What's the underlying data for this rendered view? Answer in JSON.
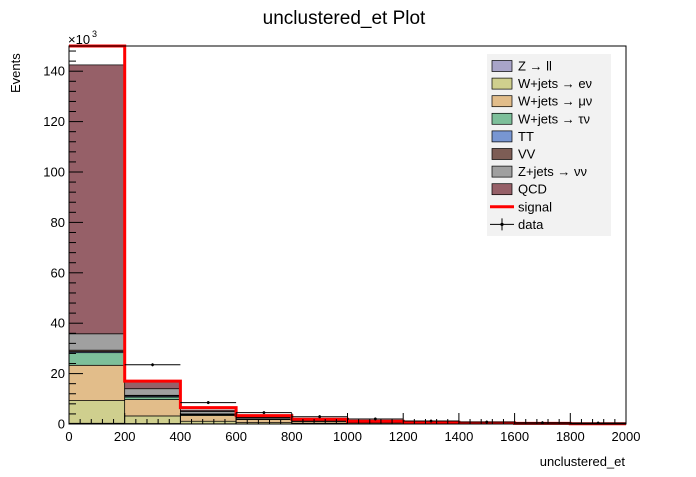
{
  "chart_data": {
    "type": "bar",
    "stacked": true,
    "title": "unclustered_et Plot",
    "xlabel": "unclustered_et",
    "ylabel": "Events",
    "y_multiplier": "×10",
    "y_multiplier_exp": "3",
    "xlim": [
      0,
      2000
    ],
    "ylim": [
      0,
      150
    ],
    "x_ticks": [
      0,
      200,
      400,
      600,
      800,
      1000,
      1200,
      1400,
      1600,
      1800,
      2000
    ],
    "y_ticks": [
      0,
      20,
      40,
      60,
      80,
      100,
      120,
      140
    ],
    "bin_edges": [
      0,
      200,
      400,
      600,
      800,
      1000,
      1200,
      1400,
      1600,
      1800,
      2000
    ],
    "legend_position": "top-right",
    "series": [
      {
        "name": "Z → ll",
        "color": "#a8a4c8",
        "values": [
          0.3,
          0.2,
          0.1,
          0.05,
          0.03,
          0.02,
          0.01,
          0.01,
          0.0,
          0.0
        ]
      },
      {
        "name": "W+jets → eν",
        "color": "#cfcf8e",
        "values": [
          9.0,
          3.0,
          1.0,
          0.5,
          0.3,
          0.15,
          0.08,
          0.04,
          0.02,
          0.01
        ]
      },
      {
        "name": "W+jets → μν",
        "color": "#e2bd8a",
        "values": [
          14.0,
          6.5,
          2.3,
          1.2,
          0.7,
          0.35,
          0.2,
          0.1,
          0.05,
          0.02
        ]
      },
      {
        "name": "W+jets → τν",
        "color": "#7dbf9a",
        "values": [
          5.0,
          1.0,
          0.3,
          0.15,
          0.08,
          0.04,
          0.02,
          0.01,
          0.0,
          0.0
        ]
      },
      {
        "name": "TT",
        "color": "#7896d2",
        "values": [
          0.4,
          0.4,
          0.2,
          0.1,
          0.05,
          0.03,
          0.02,
          0.01,
          0.0,
          0.0
        ]
      },
      {
        "name": "VV",
        "color": "#7d5d55",
        "values": [
          0.6,
          0.3,
          0.1,
          0.05,
          0.03,
          0.02,
          0.01,
          0.0,
          0.0,
          0.0
        ]
      },
      {
        "name": "Z+jets → νν",
        "color": "#a0a0a0",
        "values": [
          6.5,
          2.6,
          1.0,
          0.5,
          0.3,
          0.15,
          0.08,
          0.04,
          0.02,
          0.01
        ]
      },
      {
        "name": "QCD",
        "color": "#966068",
        "values": [
          106.7,
          3.0,
          0.5,
          0.15,
          0.05,
          0.02,
          0.01,
          0.0,
          0.0,
          0.0
        ]
      }
    ],
    "signal": {
      "name": "signal",
      "color": "#ff0000",
      "values": [
        150.0,
        17.0,
        6.5,
        3.3,
        1.9,
        1.1,
        0.7,
        0.45,
        0.25,
        0.1
      ]
    },
    "data": {
      "name": "data",
      "values": [
        null,
        23.5,
        8.5,
        4.5,
        2.9,
        2.0,
        1.2,
        0.8,
        0.5,
        0.4
      ]
    }
  }
}
